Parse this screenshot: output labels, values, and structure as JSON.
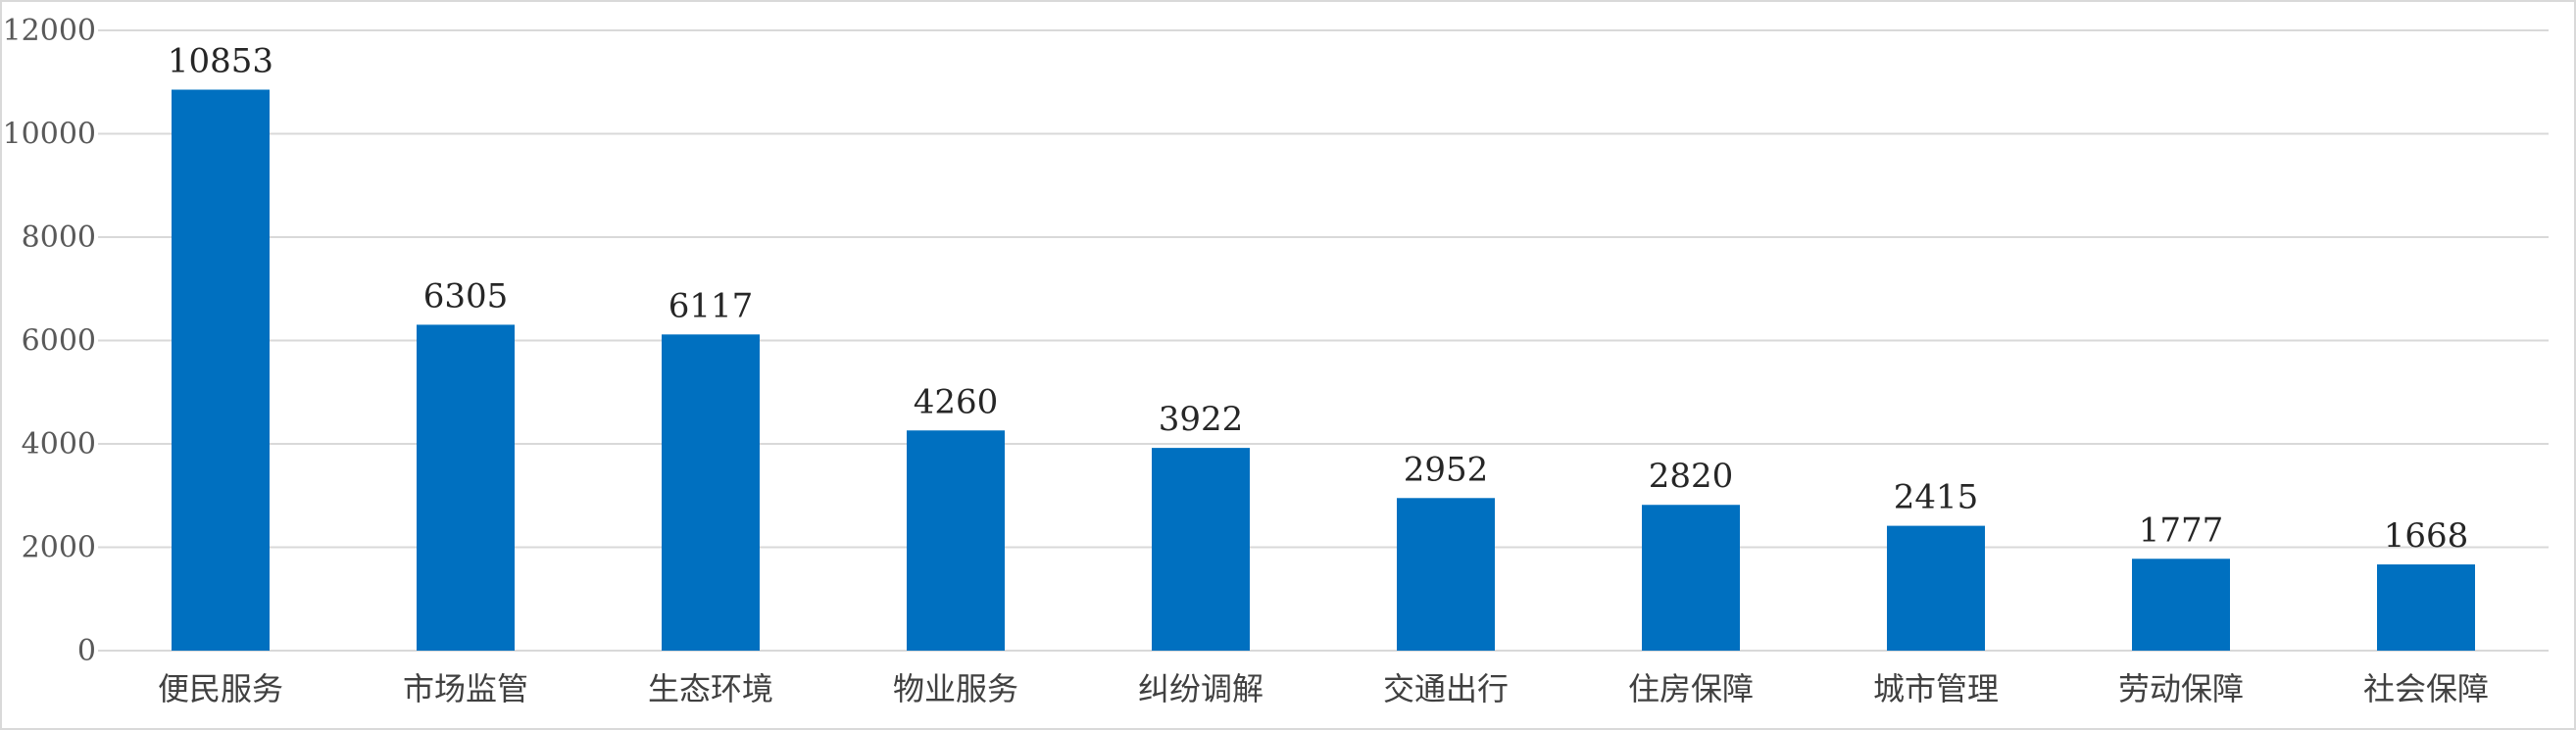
{
  "chart_data": {
    "type": "bar",
    "categories": [
      "便民服务",
      "市场监管",
      "生态环境",
      "物业服务",
      "纠纷调解",
      "交通出行",
      "住房保障",
      "城市管理",
      "劳动保障",
      "社会保障"
    ],
    "values": [
      10853,
      6305,
      6117,
      4260,
      3922,
      2952,
      2820,
      2415,
      1777,
      1668
    ],
    "ylim": [
      0,
      12000
    ],
    "yticks": [
      0,
      2000,
      4000,
      6000,
      8000,
      10000,
      12000
    ],
    "grid": true,
    "legend": "none",
    "data_labels": true,
    "colors": {
      "bar": "#0070c0",
      "grid": "#d9d9d9"
    }
  }
}
